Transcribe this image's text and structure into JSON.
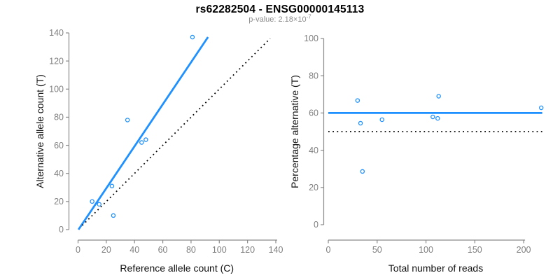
{
  "header": {
    "title": "rs62282504 - ENSG00000145113",
    "subtitle_prefix": "p-value: 2.18×10",
    "subtitle_exponent": "-7"
  },
  "colors": {
    "accent_blue": "#1E90FF",
    "line_black": "#000000",
    "tick_gray": "#7f7f7f",
    "axis_gray": "#8a8a8a",
    "label_dark": "#111111",
    "subtitle_gray": "#8c8c8c",
    "background": "#ffffff"
  },
  "chart_data": {
    "figure_title": "rs62282504 - ENSG00000145113",
    "subtitle": {
      "prefix": "p-value: 2.18×10",
      "exponent": "-7"
    },
    "panels": [
      {
        "id": "allele-counts",
        "type": "scatter",
        "title": "",
        "xlabel": "Reference allele count (C)",
        "ylabel": "Alternative allele count (T)",
        "xlim": [
          0,
          140
        ],
        "ylim": [
          0,
          140
        ],
        "xticks": [
          0,
          20,
          40,
          60,
          80,
          100,
          120,
          140
        ],
        "yticks": [
          0,
          20,
          40,
          60,
          80,
          100,
          120,
          140
        ],
        "grid": false,
        "legend": null,
        "points": [
          [
            10,
            20
          ],
          [
            15,
            18
          ],
          [
            24,
            31
          ],
          [
            25,
            10
          ],
          [
            35,
            78
          ],
          [
            45,
            62
          ],
          [
            48,
            64
          ],
          [
            81,
            137
          ]
        ],
        "lines": [
          {
            "name": "fit-line",
            "style": "solid",
            "color_key": "accent_blue",
            "x1": 0.3,
            "y1": 0,
            "x2": 92,
            "y2": 137
          },
          {
            "name": "identity-line",
            "style": "dotted",
            "color_key": "line_black",
            "x1": 3,
            "y1": 3,
            "x2": 136,
            "y2": 136
          }
        ]
      },
      {
        "id": "percentage-vs-reads",
        "type": "scatter",
        "title": "",
        "xlabel": "Total number of reads",
        "ylabel": "Percentage alternative (T)",
        "xlim": [
          0,
          220
        ],
        "ylim": [
          0,
          100
        ],
        "xticks": [
          0,
          50,
          100,
          150,
          200
        ],
        "yticks": [
          0,
          20,
          40,
          60,
          80,
          100
        ],
        "grid": false,
        "legend": null,
        "points": [
          [
            30,
            66.7
          ],
          [
            33,
            54.5
          ],
          [
            35,
            28.6
          ],
          [
            55,
            56.4
          ],
          [
            107,
            57.9
          ],
          [
            112,
            57.1
          ],
          [
            113,
            69.0
          ],
          [
            218,
            62.8
          ]
        ],
        "lines": [
          {
            "name": "mean-percentage-line",
            "style": "solid",
            "color_key": "accent_blue",
            "x1": 0,
            "y1": 60,
            "x2": 219,
            "y2": 60
          },
          {
            "name": "fifty-percent-line",
            "style": "dotted",
            "color_key": "line_black",
            "x1": 0,
            "y1": 50,
            "x2": 219,
            "y2": 50
          }
        ]
      }
    ]
  }
}
